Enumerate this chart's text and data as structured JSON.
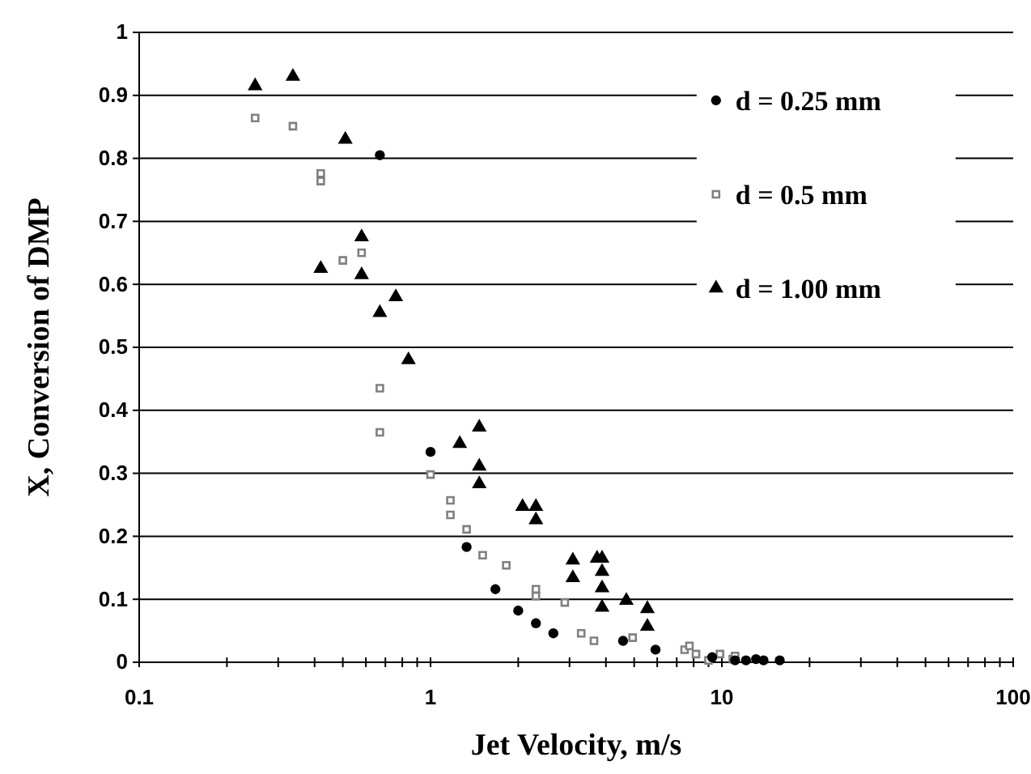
{
  "chart_data": {
    "type": "scatter",
    "xlabel": "Jet Velocity, m/s",
    "ylabel": "X, Conversion of DMP",
    "log": "x",
    "grid": "y",
    "legend": "top right",
    "xlim": [
      0.1,
      100
    ],
    "xticks": [
      0.1,
      {
        "value": 0.2,
        "label": null
      },
      {
        "value": 0.3,
        "label": null
      },
      {
        "value": 0.4,
        "label": null
      },
      {
        "value": 0.5,
        "label": null
      },
      {
        "value": 0.6,
        "label": null
      },
      {
        "value": 0.7,
        "label": null
      },
      {
        "value": 0.8,
        "label": null
      },
      {
        "value": 0.9,
        "label": null
      },
      1,
      {
        "value": 2,
        "label": null
      },
      {
        "value": 3,
        "label": null
      },
      {
        "value": 4,
        "label": null
      },
      {
        "value": 5,
        "label": null
      },
      {
        "value": 6,
        "label": null
      },
      {
        "value": 7,
        "label": null
      },
      {
        "value": 8,
        "label": null
      },
      {
        "value": 9,
        "label": null
      },
      10,
      {
        "value": 20,
        "label": null
      },
      {
        "value": 30,
        "label": null
      },
      {
        "value": 40,
        "label": null
      },
      {
        "value": 50,
        "label": null
      },
      {
        "value": 60,
        "label": null
      },
      {
        "value": 70,
        "label": null
      },
      {
        "value": 80,
        "label": null
      },
      {
        "value": 90,
        "label": null
      },
      100
    ],
    "ylim": [
      0,
      1
    ],
    "yticks": [
      0,
      0.1,
      0.2,
      0.3,
      0.4,
      0.5,
      0.6,
      0.7,
      0.8,
      0.9,
      1
    ],
    "series": [
      {
        "name": "d = 0.25 mm",
        "color": "#000000",
        "marker": "circle",
        "x": [
          0.67,
          1.0,
          1.33,
          1.67,
          2.0,
          2.3,
          2.64,
          4.58,
          5.92,
          9.26,
          11.1,
          12.1,
          13.1,
          13.9,
          15.8
        ],
        "values": [
          0.805,
          0.334,
          0.183,
          0.116,
          0.082,
          0.062,
          0.046,
          0.034,
          0.02,
          0.008,
          0.003,
          0.003,
          0.005,
          0.003,
          0.003
        ]
      },
      {
        "name": "d = 0.5 mm",
        "color": "#808080",
        "marker": "square",
        "x": [
          0.25,
          0.337,
          0.42,
          0.42,
          0.5,
          0.58,
          0.67,
          0.67,
          1.0,
          1.17,
          1.17,
          1.33,
          1.51,
          1.82,
          2.3,
          2.3,
          2.89,
          3.29,
          3.64,
          4.94,
          7.45,
          7.74,
          8.15,
          9.0,
          9.85,
          10.9,
          11.1
        ],
        "values": [
          0.864,
          0.851,
          0.776,
          0.764,
          0.638,
          0.65,
          0.435,
          0.365,
          0.298,
          0.257,
          0.234,
          0.211,
          0.17,
          0.154,
          0.116,
          0.105,
          0.095,
          0.046,
          0.034,
          0.039,
          0.02,
          0.026,
          0.013,
          0.003,
          0.013,
          0.005,
          0.01
        ]
      },
      {
        "name": "d = 1.00 mm",
        "color": "#000000",
        "marker": "triangle",
        "x": [
          0.25,
          0.337,
          0.51,
          0.42,
          0.58,
          0.58,
          0.67,
          0.76,
          0.84,
          1.47,
          1.26,
          1.47,
          1.47,
          2.07,
          2.3,
          2.3,
          3.08,
          3.08,
          3.73,
          3.88,
          3.88,
          3.88,
          3.88,
          4.7,
          5.55,
          5.55
        ],
        "values": [
          0.915,
          0.93,
          0.83,
          0.625,
          0.675,
          0.615,
          0.555,
          0.58,
          0.48,
          0.373,
          0.347,
          0.311,
          0.283,
          0.247,
          0.247,
          0.226,
          0.162,
          0.134,
          0.165,
          0.165,
          0.144,
          0.118,
          0.087,
          0.098,
          0.085,
          0.057
        ]
      }
    ]
  }
}
